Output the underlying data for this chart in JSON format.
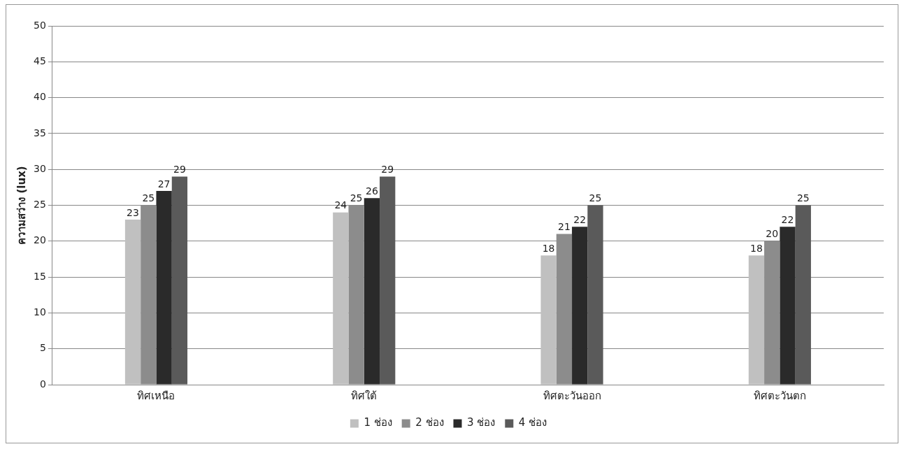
{
  "chart_data": {
    "type": "bar",
    "ylabel": "ความสว่าง (lux)",
    "categories": [
      "ทิศเหนือ",
      "ทิศใต้",
      "ทิศตะวันออก",
      "ทิศตะวันตก"
    ],
    "series": [
      {
        "name": "1 ช่อง",
        "color": "#c0c0c0",
        "values": [
          23,
          24,
          18,
          18
        ]
      },
      {
        "name": "2 ช่อง",
        "color": "#8c8c8c",
        "values": [
          25,
          25,
          21,
          20
        ]
      },
      {
        "name": "3 ช่อง",
        "color": "#2a2a2a",
        "values": [
          27,
          26,
          22,
          22
        ]
      },
      {
        "name": "4 ช่อง",
        "color": "#5a5a5a",
        "values": [
          29,
          29,
          25,
          25
        ]
      }
    ],
    "ylim": [
      0,
      50
    ],
    "yticks": [
      0,
      5,
      10,
      15,
      20,
      25,
      30,
      35,
      40,
      45,
      50
    ],
    "grid": "y",
    "legend": "bottom",
    "data_labels": true
  }
}
